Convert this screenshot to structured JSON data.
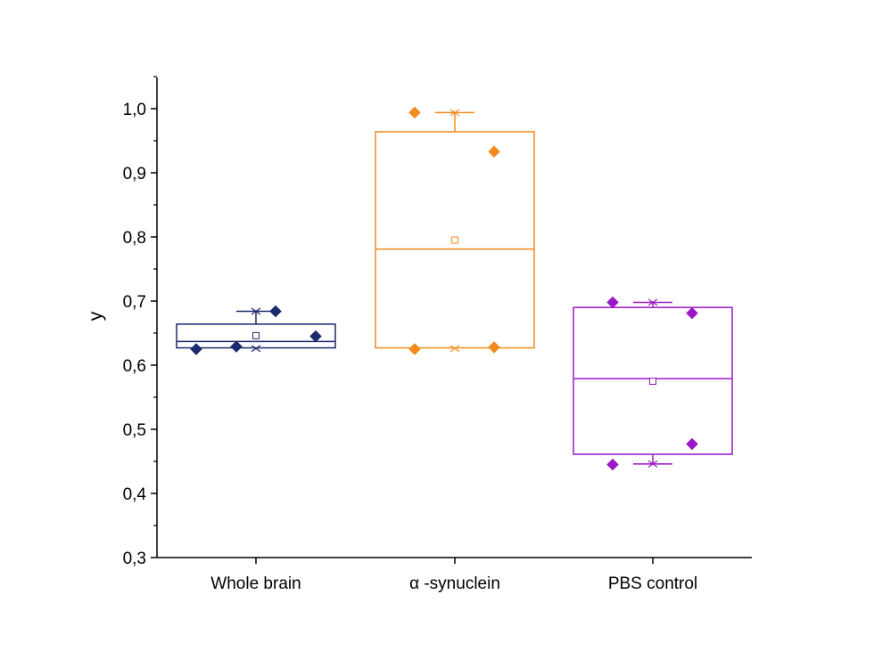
{
  "chart_data": {
    "type": "box",
    "title": "",
    "xlabel": "",
    "ylabel": "y",
    "ylim": [
      0.3,
      1.05
    ],
    "y_ticks": [
      "0,3",
      "0,4",
      "0,5",
      "0,6",
      "0,7",
      "0,8",
      "0,9",
      "1,0"
    ],
    "y_tick_values": [
      0.3,
      0.4,
      0.5,
      0.6,
      0.7,
      0.8,
      0.9,
      1.0
    ],
    "grid": false,
    "categories": [
      "Whole brain",
      "α -synuclein",
      "PBS control"
    ],
    "series": [
      {
        "name": "Whole brain",
        "color": "#1a2a6c",
        "q1": 0.627,
        "median": 0.637,
        "q3": 0.664,
        "mean": 0.646,
        "whisker_low": 0.627,
        "whisker_high": 0.684,
        "min_marker": 0.626,
        "max_marker": 0.684,
        "points": [
          0.625,
          0.629,
          0.684,
          0.645
        ]
      },
      {
        "name": "α -synuclein",
        "color": "#f28a1e",
        "q1": 0.627,
        "median": 0.781,
        "q3": 0.964,
        "mean": 0.795,
        "whisker_low": 0.627,
        "whisker_high": 0.994,
        "min_marker": 0.626,
        "max_marker": 0.994,
        "points": [
          0.994,
          0.933,
          0.625,
          0.628
        ]
      },
      {
        "name": "PBS control",
        "color": "#9b18c8",
        "q1": 0.461,
        "median": 0.579,
        "q3": 0.69,
        "mean": 0.575,
        "whisker_low": 0.446,
        "whisker_high": 0.698,
        "min_marker": 0.446,
        "max_marker": 0.698,
        "points": [
          0.698,
          0.681,
          0.445,
          0.477
        ]
      }
    ]
  }
}
